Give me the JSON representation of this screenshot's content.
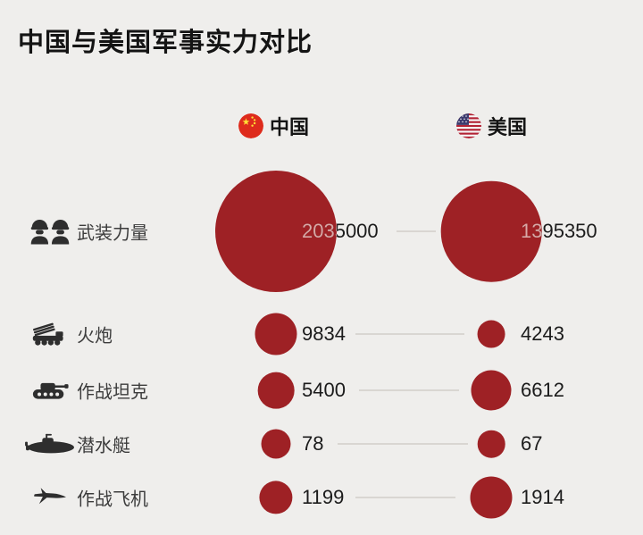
{
  "title": "中国与美国军事实力对比",
  "columns": [
    {
      "label": "中国",
      "icon": "china-flag-icon"
    },
    {
      "label": "美国",
      "icon": "usa-flag-icon"
    }
  ],
  "colors": {
    "background": "#efeeec",
    "bubble_red": "#9e2125",
    "overlap_text": "#dba8a6",
    "title_text": "#141414",
    "label_text": "#3c3c3c",
    "value_text": "#1b1b1b",
    "icon_gray": "#2e2e2e",
    "connector_line": "#d9d6d2",
    "china_flag_red": "#de2b1c",
    "china_flag_yellow": "#ffde36",
    "usa_flag_navy": "#3c3b6e",
    "usa_flag_red": "#b22234",
    "usa_flag_white": "#f7f7f7"
  },
  "chart_data": {
    "type": "bubble",
    "title": "中国与美国军事实力对比",
    "categories": [
      "武装力量",
      "火炮",
      "作战坦克",
      "潜水艇",
      "作战飞机"
    ],
    "series": [
      {
        "name": "中国",
        "values": [
          2035000,
          9834,
          5400,
          78,
          1199
        ]
      },
      {
        "name": "美国",
        "values": [
          1395350,
          4243,
          6612,
          67,
          1914
        ]
      }
    ],
    "legend_position": "top",
    "bubble_scale": "area proportional to value within each row",
    "rows": [
      {
        "label": "武装力量",
        "icon": "soldiers-icon",
        "china": "2035000",
        "usa": "1395350",
        "max_diameter": 136
      },
      {
        "label": "火炮",
        "icon": "rocket-launcher-icon",
        "china": "9834",
        "usa": "4243",
        "max_diameter": 47
      },
      {
        "label": "作战坦克",
        "icon": "tank-icon",
        "china": "5400",
        "usa": "6612",
        "max_diameter": 45
      },
      {
        "label": "潜水艇",
        "icon": "submarine-icon",
        "china": "78",
        "usa": "67",
        "max_diameter": 33
      },
      {
        "label": "作战飞机",
        "icon": "fighter-jet-icon",
        "china": "1199",
        "usa": "1914",
        "max_diameter": 47
      }
    ]
  }
}
